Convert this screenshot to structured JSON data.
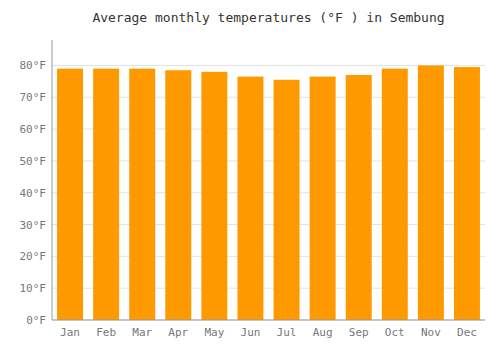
{
  "chart_data": {
    "type": "bar",
    "title": "Average monthly temperatures (°F ) in Sembung",
    "categories": [
      "Jan",
      "Feb",
      "Mar",
      "Apr",
      "May",
      "Jun",
      "Jul",
      "Aug",
      "Sep",
      "Oct",
      "Nov",
      "Dec"
    ],
    "values": [
      79.0,
      79.0,
      79.0,
      78.5,
      78.0,
      76.5,
      75.5,
      76.5,
      77.0,
      79.0,
      80.0,
      79.5
    ],
    "color": "#FF9900",
    "ylim": [
      0,
      88
    ],
    "yticks": [
      {
        "value": 0,
        "label": "0°F"
      },
      {
        "value": 10,
        "label": "10°F"
      },
      {
        "value": 20,
        "label": "20°F"
      },
      {
        "value": 30,
        "label": "30°F"
      },
      {
        "value": 40,
        "label": "40°F"
      },
      {
        "value": 50,
        "label": "50°F"
      },
      {
        "value": 60,
        "label": "60°F"
      },
      {
        "value": 70,
        "label": "70°F"
      },
      {
        "value": 80,
        "label": "80°F"
      }
    ],
    "grid": true
  }
}
